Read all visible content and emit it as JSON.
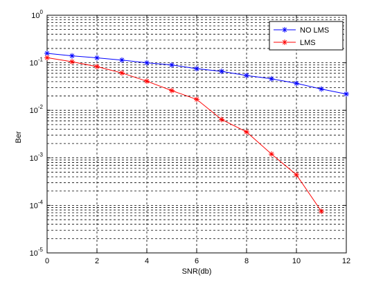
{
  "chart_data": {
    "type": "line",
    "title": "",
    "xlabel": "SNR(db)",
    "ylabel": "Ber",
    "xlim": [
      0,
      12
    ],
    "ylim": [
      1e-05,
      1
    ],
    "yscale": "log",
    "grid": true,
    "legend_position": "top-right",
    "x_ticks": [
      0,
      2,
      4,
      6,
      8,
      10,
      12
    ],
    "y_tick_labels": [
      {
        "base": "10",
        "exp": "0",
        "value": 1
      },
      {
        "base": "10",
        "exp": "-1",
        "value": 0.1
      },
      {
        "base": "10",
        "exp": "-2",
        "value": 0.01
      },
      {
        "base": "10",
        "exp": "-3",
        "value": 0.001
      },
      {
        "base": "10",
        "exp": "-4",
        "value": 0.0001
      },
      {
        "base": "10",
        "exp": "-5",
        "value": 1e-05
      }
    ],
    "series": [
      {
        "name": "NO LMS",
        "color": "#0000ff",
        "marker": "asterisk",
        "x": [
          0,
          1,
          2,
          3,
          4,
          5,
          6,
          7,
          8,
          9,
          10,
          11,
          12
        ],
        "y": [
          0.158,
          0.14,
          0.127,
          0.114,
          0.1,
          0.09,
          0.075,
          0.066,
          0.054,
          0.046,
          0.037,
          0.028,
          0.022
        ]
      },
      {
        "name": "LMS",
        "color": "#ff0000",
        "marker": "asterisk",
        "x": [
          0,
          1,
          2,
          3,
          4,
          5,
          6,
          7,
          8,
          9,
          10,
          11
        ],
        "y": [
          0.128,
          0.105,
          0.083,
          0.061,
          0.041,
          0.026,
          0.017,
          0.0064,
          0.0035,
          0.0012,
          0.00044,
          7.5e-05
        ]
      }
    ]
  }
}
